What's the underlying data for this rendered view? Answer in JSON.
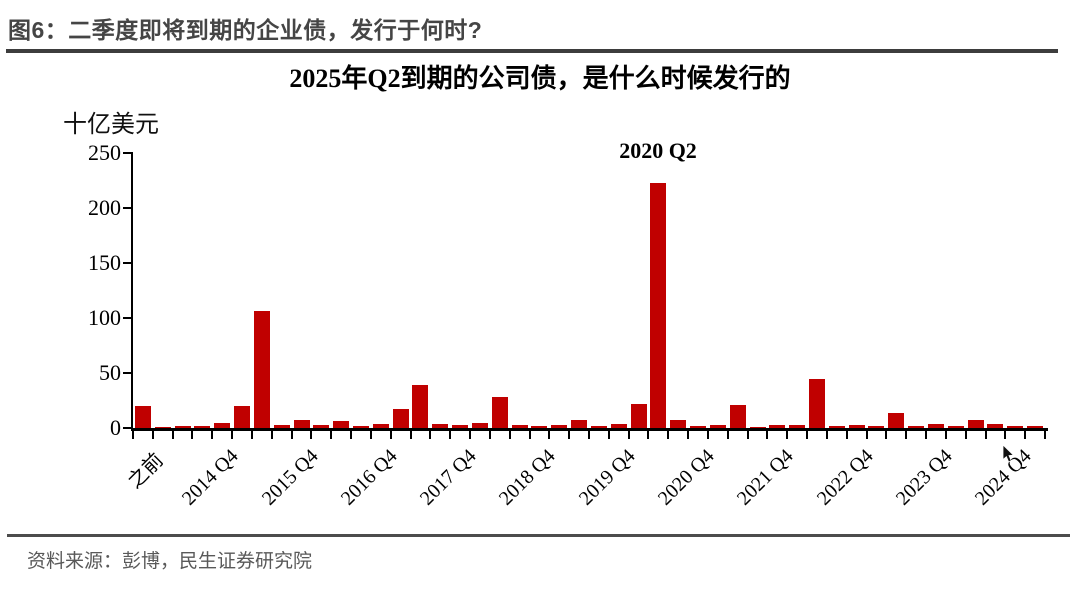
{
  "header": {
    "figure_title": "图6：二季度即将到期的企业债，发行于何时?"
  },
  "footer": {
    "source_note": "资料来源：彭博，民生证券研究院"
  },
  "chart_data": {
    "type": "bar",
    "title": "2025年Q2到期的公司债，是什么时候发行的",
    "ylabel": "十亿美元",
    "xlabel": "",
    "annotation": "2020 Q2",
    "annotation_target_category": "2020 Q2",
    "bar_color": "#C00000",
    "axis_color": "#000000",
    "ylim": [
      0,
      250
    ],
    "yticks": [
      0,
      50,
      100,
      150,
      200,
      250
    ],
    "grid": false,
    "legend": "none",
    "xtick_labels_shown": [
      "之前",
      "2014 Q4",
      "2015 Q4",
      "2016 Q4",
      "2017 Q4",
      "2018 Q4",
      "2019 Q4",
      "2020 Q4",
      "2021 Q4",
      "2022 Q4",
      "2023 Q4",
      "2024 Q4"
    ],
    "categories": [
      "之前",
      "2014 Q1",
      "2014 Q2",
      "2014 Q3",
      "2014 Q4",
      "2015 Q1",
      "2015 Q2",
      "2015 Q3",
      "2015 Q4",
      "2016 Q1",
      "2016 Q2",
      "2016 Q3",
      "2016 Q4",
      "2017 Q1",
      "2017 Q2",
      "2017 Q3",
      "2017 Q4",
      "2018 Q1",
      "2018 Q2",
      "2018 Q3",
      "2018 Q4",
      "2019 Q1",
      "2019 Q2",
      "2019 Q3",
      "2019 Q4",
      "2020 Q1",
      "2020 Q2",
      "2020 Q3",
      "2020 Q4",
      "2021 Q1",
      "2021 Q2",
      "2021 Q3",
      "2021 Q4",
      "2022 Q1",
      "2022 Q2",
      "2022 Q3",
      "2022 Q4",
      "2023 Q1",
      "2023 Q2",
      "2023 Q3",
      "2023 Q4",
      "2024 Q1",
      "2024 Q2",
      "2024 Q3",
      "2024 Q4",
      "2025 Q1"
    ],
    "values": [
      20,
      0.5,
      1.5,
      1.5,
      5,
      20,
      106,
      3,
      7,
      3,
      6.5,
      2,
      4,
      17,
      39,
      4,
      2.5,
      4.5,
      28,
      3,
      1.5,
      2.5,
      7,
      1.5,
      4,
      22,
      223,
      7,
      1.5,
      2.5,
      21,
      1,
      2.5,
      2.5,
      45,
      2,
      2.5,
      1.5,
      14,
      2,
      4,
      1.5,
      7.5,
      3.5,
      1.5,
      2
    ]
  }
}
